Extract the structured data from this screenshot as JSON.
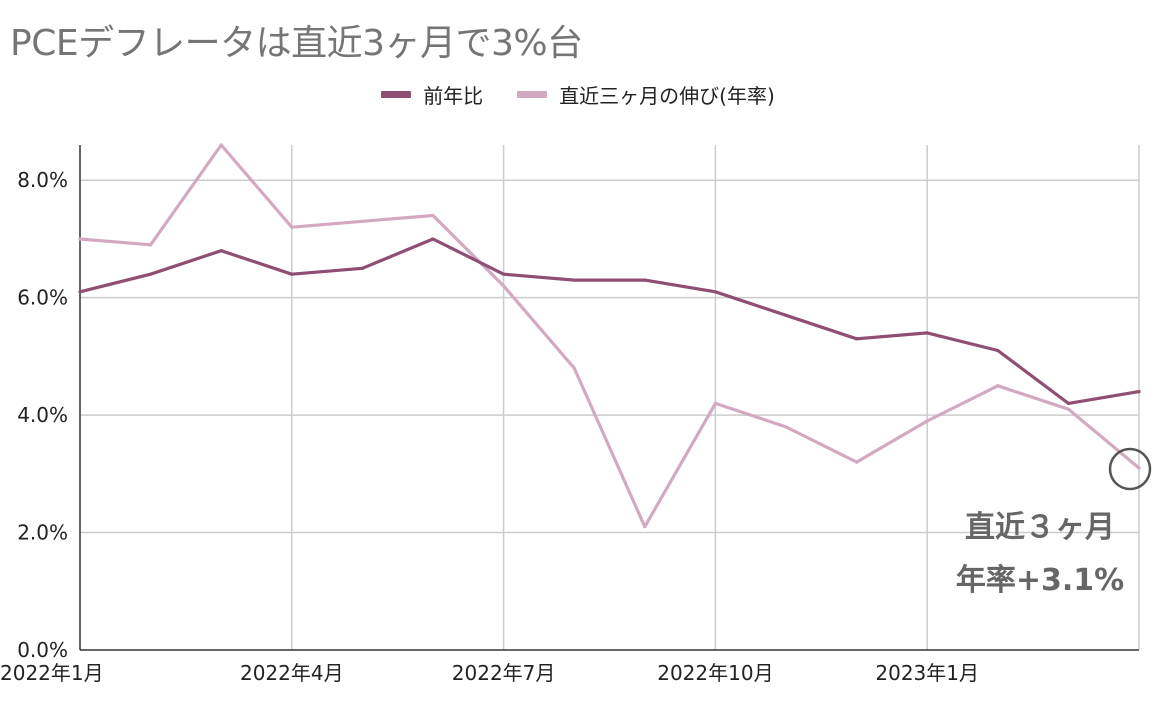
{
  "chart_data": {
    "type": "line",
    "title": "PCEデフレータは直近3ヶ月で3%台",
    "categories": [
      "2022-01",
      "2022-02",
      "2022-03",
      "2022-04",
      "2022-05",
      "2022-06",
      "2022-07",
      "2022-08",
      "2022-09",
      "2022-10",
      "2022-11",
      "2022-12",
      "2023-01",
      "2023-02",
      "2023-03",
      "2023-04"
    ],
    "x_tick_labels": [
      "2022年1月",
      "2022年4月",
      "2022年7月",
      "2022年10月",
      "2023年1月"
    ],
    "x_tick_categories": [
      "2022-01",
      "2022-04",
      "2022-07",
      "2022-10",
      "2023-01"
    ],
    "series": [
      {
        "name": "前年比",
        "color": "#8e4f72",
        "values": [
          6.1,
          6.4,
          6.8,
          6.4,
          6.5,
          7.0,
          6.4,
          6.3,
          6.3,
          6.1,
          5.7,
          5.3,
          5.4,
          5.1,
          4.2,
          4.4
        ]
      },
      {
        "name": "直近三ヶ月の伸び(年率)",
        "color": "#d3a9c1",
        "values": [
          7.0,
          6.9,
          8.6,
          7.2,
          7.3,
          7.4,
          6.2,
          4.8,
          2.1,
          4.2,
          3.8,
          3.2,
          3.9,
          4.5,
          4.1,
          3.1
        ]
      }
    ],
    "y_ticks": [
      "0.0%",
      "2.0%",
      "4.0%",
      "6.0%",
      "8.0%"
    ],
    "ylim": [
      0,
      8.6
    ],
    "grid": true,
    "legend_position": "top-center",
    "annotation": {
      "line1": "直近３ヶ月",
      "line2": "年率+3.1%",
      "highlight_category": "2023-04",
      "highlight_value": 3.1
    }
  }
}
